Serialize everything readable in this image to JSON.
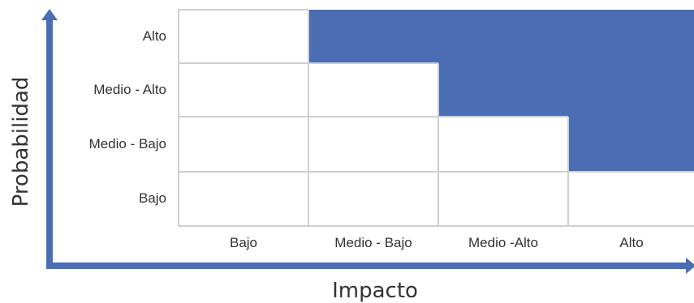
{
  "axes": {
    "y_title": "Probabilidad",
    "x_title": "Impacto"
  },
  "rows": [
    "Alto",
    "Medio - Alto",
    "Medio - Bajo",
    "Bajo"
  ],
  "columns": [
    "Bajo",
    "Medio - Bajo",
    "Medio -Alto",
    "Alto"
  ],
  "highlight_color": "#4a6db3",
  "highlighted_cells": [
    {
      "row": "Alto",
      "column": "Medio - Bajo"
    },
    {
      "row": "Alto",
      "column": "Medio -Alto"
    },
    {
      "row": "Alto",
      "column": "Alto"
    },
    {
      "row": "Medio - Alto",
      "column": "Medio -Alto"
    },
    {
      "row": "Medio - Alto",
      "column": "Alto"
    },
    {
      "row": "Medio - Bajo",
      "column": "Alto"
    }
  ]
}
